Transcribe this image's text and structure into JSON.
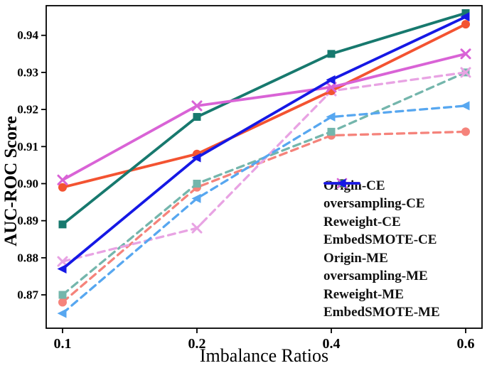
{
  "figure": {
    "background_color": "#ffffff",
    "axis_color": "#000000"
  },
  "chart_data": {
    "type": "line",
    "title": "",
    "xlabel": "Imbalance Ratios",
    "ylabel": "AUC-ROC Score",
    "x_tick_labels": [
      "0.1",
      "0.2",
      "0.4",
      "0.6"
    ],
    "x": [
      0.1,
      0.2,
      0.4,
      0.6
    ],
    "y_ticks": [
      0.87,
      0.88,
      0.89,
      0.9,
      0.91,
      0.92,
      0.93,
      0.94
    ],
    "ylim": [
      0.861,
      0.948
    ],
    "grid": false,
    "legend_position": "lower right",
    "legend_frame": false,
    "series": [
      {
        "name": "Origin-CE",
        "color": "#F5837B",
        "marker": "circle",
        "line_style": "dashed",
        "values": [
          0.868,
          0.899,
          0.913,
          0.914
        ]
      },
      {
        "name": "oversampling-CE",
        "color": "#74B6AC",
        "marker": "square",
        "line_style": "dashed",
        "values": [
          0.87,
          0.9,
          0.914,
          0.93
        ]
      },
      {
        "name": "Reweight-CE",
        "color": "#E8A3E3",
        "marker": "x",
        "line_style": "dashed",
        "values": [
          0.879,
          0.888,
          0.925,
          0.93
        ]
      },
      {
        "name": "EmbedSMOTE-CE",
        "color": "#57A7F0",
        "marker": "triangle",
        "line_style": "dashed",
        "values": [
          0.865,
          0.896,
          0.918,
          0.921
        ]
      },
      {
        "name": "Origin-ME",
        "color": "#F35331",
        "marker": "circle",
        "line_style": "solid",
        "values": [
          0.899,
          0.908,
          0.925,
          0.943
        ]
      },
      {
        "name": "oversampling-ME",
        "color": "#17796E",
        "marker": "square",
        "line_style": "solid",
        "values": [
          0.889,
          0.918,
          0.935,
          0.946
        ]
      },
      {
        "name": "Reweight-ME",
        "color": "#D963D6",
        "marker": "x",
        "line_style": "solid",
        "values": [
          0.901,
          0.921,
          0.926,
          0.935
        ]
      },
      {
        "name": "EmbedSMOTE-ME",
        "color": "#1518E5",
        "marker": "triangle",
        "line_style": "solid",
        "values": [
          0.877,
          0.907,
          0.928,
          0.945
        ]
      }
    ]
  }
}
